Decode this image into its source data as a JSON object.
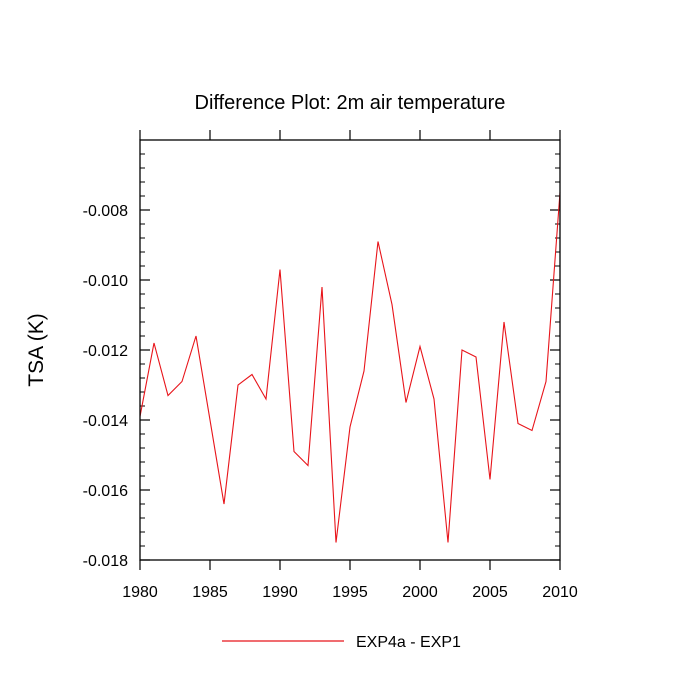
{
  "chart_data": {
    "type": "line",
    "title": "Difference Plot: 2m air temperature",
    "xlabel": "",
    "ylabel": "TSA  (K)",
    "xlim": [
      1980,
      2010
    ],
    "ylim": [
      -0.018,
      -0.006
    ],
    "x_ticks": [
      1980,
      1985,
      1990,
      1995,
      2000,
      2005,
      2010
    ],
    "x_tick_labels": [
      "1980",
      "1985",
      "1990",
      "1995",
      "2000",
      "2005",
      "2010"
    ],
    "y_ticks": [
      -0.018,
      -0.016,
      -0.014,
      -0.012,
      -0.01,
      -0.008
    ],
    "y_tick_labels": [
      "-0.018",
      "-0.016",
      "-0.014",
      "-0.012",
      "-0.010",
      "-0.008"
    ],
    "grid": false,
    "legend_position": "bottom-center",
    "series": [
      {
        "name": "EXP4a - EXP1",
        "color": "#e8141a",
        "x": [
          1980,
          1981,
          1982,
          1983,
          1984,
          1985,
          1986,
          1987,
          1988,
          1989,
          1990,
          1991,
          1992,
          1993,
          1994,
          1995,
          1996,
          1997,
          1998,
          1999,
          2000,
          2001,
          2002,
          2003,
          2004,
          2005,
          2006,
          2007,
          2008,
          2009,
          2010
        ],
        "y": [
          -0.0139,
          -0.0118,
          -0.0133,
          -0.0129,
          -0.0116,
          -0.014,
          -0.0164,
          -0.013,
          -0.0127,
          -0.0134,
          -0.0097,
          -0.0149,
          -0.0153,
          -0.0102,
          -0.0175,
          -0.0142,
          -0.0126,
          -0.0089,
          -0.0107,
          -0.0135,
          -0.0119,
          -0.0134,
          -0.0175,
          -0.012,
          -0.0122,
          -0.0157,
          -0.0112,
          -0.0141,
          -0.0143,
          -0.0129,
          -0.0075
        ]
      }
    ]
  }
}
